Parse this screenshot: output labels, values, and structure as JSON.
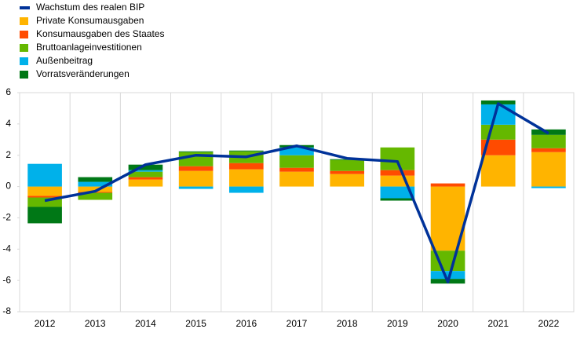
{
  "chart_data": {
    "type": "stacked_bar_line",
    "categories": [
      "2012",
      "2013",
      "2014",
      "2015",
      "2016",
      "2017",
      "2018",
      "2019",
      "2020",
      "2021",
      "2022"
    ],
    "line": {
      "name": "Wachstum des realen BIP",
      "color": "#003299",
      "values": [
        -0.9,
        -0.3,
        1.4,
        2.0,
        1.9,
        2.6,
        1.8,
        1.6,
        -6.1,
        5.3,
        3.4
      ]
    },
    "series": [
      {
        "name": "Private Konsumausgaben",
        "color": "#ffb400",
        "values": [
          -0.6,
          -0.35,
          0.45,
          1.0,
          1.1,
          0.95,
          0.8,
          0.7,
          -4.1,
          2.0,
          2.2
        ]
      },
      {
        "name": "Konsumausgaben des Staates",
        "color": "#ff4b00",
        "values": [
          -0.1,
          -0.05,
          0.15,
          0.3,
          0.4,
          0.25,
          0.2,
          0.35,
          0.2,
          1.0,
          0.25
        ]
      },
      {
        "name": "Bruttoanlageinvestitionen",
        "color": "#65b800",
        "values": [
          -0.6,
          -0.45,
          0.35,
          0.9,
          0.75,
          0.8,
          0.7,
          1.45,
          -1.3,
          0.95,
          0.85
        ]
      },
      {
        "name": "Außenbeitrag",
        "color": "#00b1ea",
        "values": [
          1.45,
          0.3,
          0.1,
          -0.15,
          -0.4,
          0.5,
          0.0,
          -0.75,
          -0.5,
          1.3,
          -0.1
        ]
      },
      {
        "name": "Vorratsveränderungen",
        "color": "#007816",
        "values": [
          -1.05,
          0.3,
          0.35,
          0.05,
          0.05,
          0.15,
          0.05,
          -0.15,
          -0.3,
          0.25,
          0.35
        ]
      }
    ],
    "ylim": [
      -8,
      6
    ],
    "yticks": [
      -8,
      -6,
      -4,
      -2,
      0,
      2,
      4,
      6
    ],
    "grid": true
  }
}
